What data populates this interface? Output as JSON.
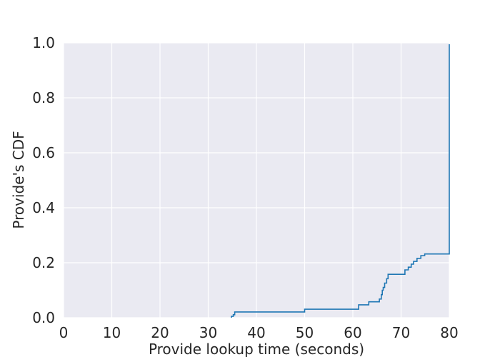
{
  "chart_data": {
    "type": "line",
    "subtype": "step-cdf",
    "title": "",
    "xlabel": "Provide lookup time (seconds)",
    "ylabel": "Provide's CDF",
    "xlim": [
      0,
      80
    ],
    "ylim": [
      0,
      1.0
    ],
    "xticks": [
      0,
      10,
      20,
      30,
      40,
      50,
      60,
      70,
      80
    ],
    "yticks": [
      "0.0",
      "0.2",
      "0.4",
      "0.6",
      "0.8",
      "1.0"
    ],
    "grid": true,
    "legend": "none",
    "series": [
      {
        "color": "#1f77b4",
        "x": [
          34.8,
          35.2,
          35.5,
          50.0,
          61.2,
          63.3,
          65.5,
          65.9,
          66.1,
          66.3,
          66.6,
          67.0,
          67.3,
          70.8,
          71.5,
          72.1,
          72.6,
          73.3,
          74.1,
          74.9,
          80.0,
          80.0
        ],
        "y": [
          0.005,
          0.011,
          0.021,
          0.031,
          0.047,
          0.058,
          0.068,
          0.084,
          0.1,
          0.11,
          0.126,
          0.142,
          0.158,
          0.174,
          0.184,
          0.195,
          0.205,
          0.216,
          0.226,
          0.232,
          0.232,
          0.995
        ]
      }
    ]
  }
}
